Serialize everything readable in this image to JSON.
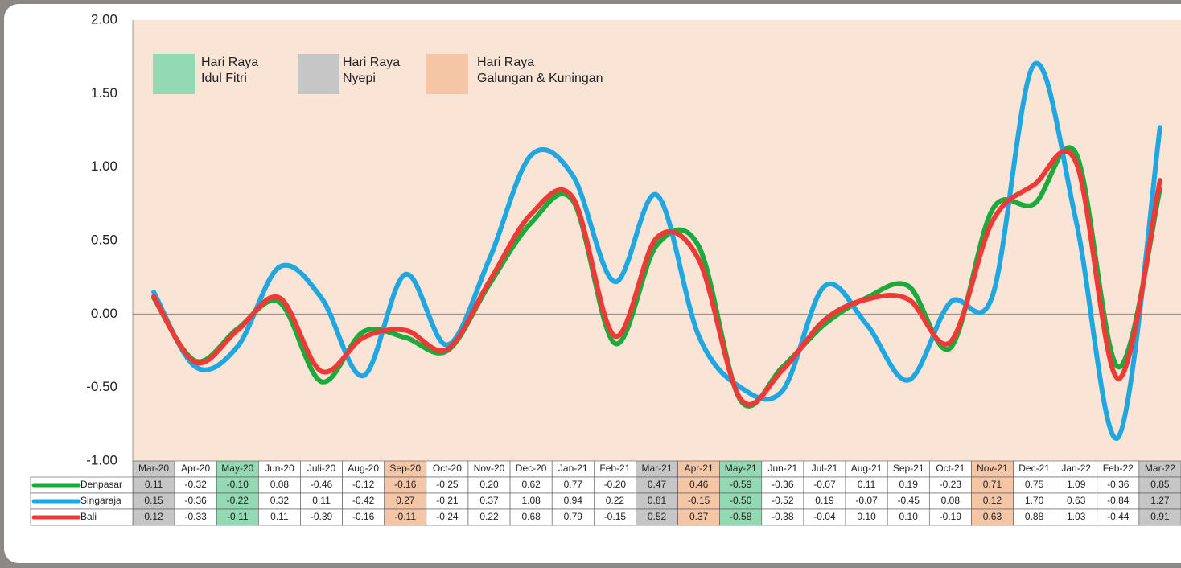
{
  "chart_data": {
    "type": "line",
    "categories": [
      "Mar-20",
      "Apr-20",
      "May-20",
      "Jun-20",
      "Juli-20",
      "Aug-20",
      "Sep-20",
      "Oct-20",
      "Nov-20",
      "Dec-20",
      "Jan-21",
      "Feb-21",
      "Mar-21",
      "Apr-21",
      "May-21",
      "Jun-21",
      "Jul-21",
      "Aug-21",
      "Sep-21",
      "Oct-21",
      "Nov-21",
      "Dec-21",
      "Jan-22",
      "Feb-22",
      "Mar-22"
    ],
    "series": [
      {
        "name": "Denpasar",
        "color": "#1aab3c",
        "values": [
          0.11,
          -0.32,
          -0.1,
          0.08,
          -0.46,
          -0.12,
          -0.16,
          -0.25,
          0.2,
          0.62,
          0.77,
          -0.2,
          0.47,
          0.46,
          -0.59,
          -0.36,
          -0.07,
          0.11,
          0.19,
          -0.23,
          0.71,
          0.75,
          1.09,
          -0.36,
          0.85
        ],
        "value_labels": [
          "0.11",
          "-0.32",
          "-0.10",
          "0.08",
          "-0.46",
          "-0.12",
          "-0.16",
          "-0.25",
          "0.20",
          "0.62",
          "0.77",
          "-0.20",
          "0.47",
          "0.46",
          "-0.59",
          "-0.36",
          "-0.07",
          "0.11",
          "0.19",
          "-0.23",
          "0.71",
          "0.75",
          "1.09",
          "-0.36",
          "0.85"
        ]
      },
      {
        "name": "Singaraja",
        "color": "#1ea7e1",
        "values": [
          0.15,
          -0.36,
          -0.22,
          0.32,
          0.11,
          -0.42,
          0.27,
          -0.21,
          0.37,
          1.08,
          0.94,
          0.22,
          0.81,
          -0.15,
          -0.5,
          -0.52,
          0.19,
          -0.07,
          -0.45,
          0.08,
          0.12,
          1.7,
          0.63,
          -0.84,
          1.27
        ],
        "value_labels": [
          "0.15",
          "-0.36",
          "-0.22",
          "0.32",
          "0.11",
          "-0.42",
          "0.27",
          "-0.21",
          "0.37",
          "1.08",
          "0.94",
          "0.22",
          "0.81",
          "-0.15",
          "-0.50",
          "-0.52",
          "0.19",
          "-0.07",
          "-0.45",
          "0.08",
          "0.12",
          "1.70",
          "0.63",
          "-0.84",
          "1.27"
        ]
      },
      {
        "name": "Bali",
        "color": "#ee3a36",
        "values": [
          0.12,
          -0.33,
          -0.11,
          0.11,
          -0.39,
          -0.16,
          -0.11,
          -0.24,
          0.22,
          0.68,
          0.79,
          -0.15,
          0.52,
          0.37,
          -0.58,
          -0.38,
          -0.04,
          0.1,
          0.1,
          -0.19,
          0.63,
          0.88,
          1.03,
          -0.44,
          0.91
        ],
        "value_labels": [
          "0.12",
          "-0.33",
          "-0.11",
          "0.11",
          "-0.39",
          "-0.16",
          "-0.11",
          "-0.24",
          "0.22",
          "0.68",
          "0.79",
          "-0.15",
          "0.52",
          "0.37",
          "-0.58",
          "-0.38",
          "-0.04",
          "0.10",
          "0.10",
          "-0.19",
          "0.63",
          "0.88",
          "1.03",
          "-0.44",
          "0.91"
        ]
      }
    ],
    "ylim": [
      -1,
      2
    ],
    "yticks": [
      {
        "value": 2,
        "label": "2.00"
      },
      {
        "value": 1.5,
        "label": "1.50"
      },
      {
        "value": 1,
        "label": "1.00"
      },
      {
        "value": 0.5,
        "label": "0.50"
      },
      {
        "value": 0,
        "label": "0.00"
      },
      {
        "value": -0.5,
        "label": "-0.50"
      },
      {
        "value": -1,
        "label": "-1.00"
      }
    ],
    "holidays": [
      {
        "lines": [
          "Hari Raya",
          "Idul Fitri"
        ],
        "color": "#93d9b3"
      },
      {
        "lines": [
          "Hari Raya",
          "Nyepi"
        ],
        "color": "#c6c6c6"
      },
      {
        "lines": [
          "Hari Raya",
          "Galungan & Kuningan"
        ],
        "color": "#f5c6a6"
      }
    ],
    "category_holiday": [
      1,
      null,
      0,
      null,
      null,
      null,
      2,
      null,
      null,
      null,
      null,
      null,
      1,
      2,
      0,
      null,
      null,
      null,
      null,
      null,
      2,
      null,
      null,
      null,
      1
    ],
    "plot_background": "#fae4d6"
  }
}
